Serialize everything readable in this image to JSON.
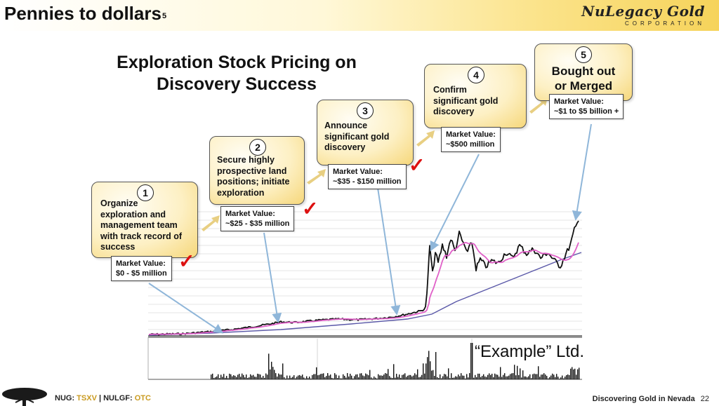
{
  "header": {
    "title": "Pennies to dollars",
    "footnote_marker": "5",
    "logo_text": "NuLegacy Gold",
    "logo_sub": "CORPORATION"
  },
  "diagram": {
    "title_line1": "Exploration Stock Pricing on",
    "title_line2": "Discovery Success",
    "steps": [
      {
        "number": "1",
        "text": [
          "Organize",
          "exploration and",
          "management team",
          "with track record of",
          "success"
        ],
        "market_value_label": "Market Value:",
        "market_value": "$0 - $5 million",
        "checked": true
      },
      {
        "number": "2",
        "text": [
          "Secure highly",
          "prospective land",
          "positions; initiate",
          "exploration"
        ],
        "market_value_label": "Market Value:",
        "market_value": "~$25 - $35 million",
        "checked": true
      },
      {
        "number": "3",
        "text": [
          "Announce",
          "significant gold",
          "discovery"
        ],
        "market_value_label": "Market Value:",
        "market_value": "~$35 - $150 million",
        "checked": true
      },
      {
        "number": "4",
        "text": [
          "Confirm",
          "significant gold",
          "discovery"
        ],
        "market_value_label": "Market Value:",
        "market_value": "~$500 million",
        "checked": false
      },
      {
        "number": "5",
        "text": [
          "Bought out",
          "or Merged"
        ],
        "market_value_label": "Market Value:",
        "market_value": "~$1 to $5 billion +",
        "checked": false
      }
    ],
    "chart_label": "“Example” Ltd.",
    "colors": {
      "price": "#111111",
      "ma_short": "#e060c8",
      "ma_long": "#5a58a8",
      "arrow": "#8fb6d9",
      "step_arrow": "#e8cf82",
      "check": "#dd1111"
    }
  },
  "footer": {
    "ticker1": "NUG:",
    "exchange1": "TSXV",
    "separator": "|",
    "ticker2": "NULGF:",
    "exchange2": "OTC",
    "tagline": "Discovering Gold in Nevada",
    "page_number": "22"
  }
}
